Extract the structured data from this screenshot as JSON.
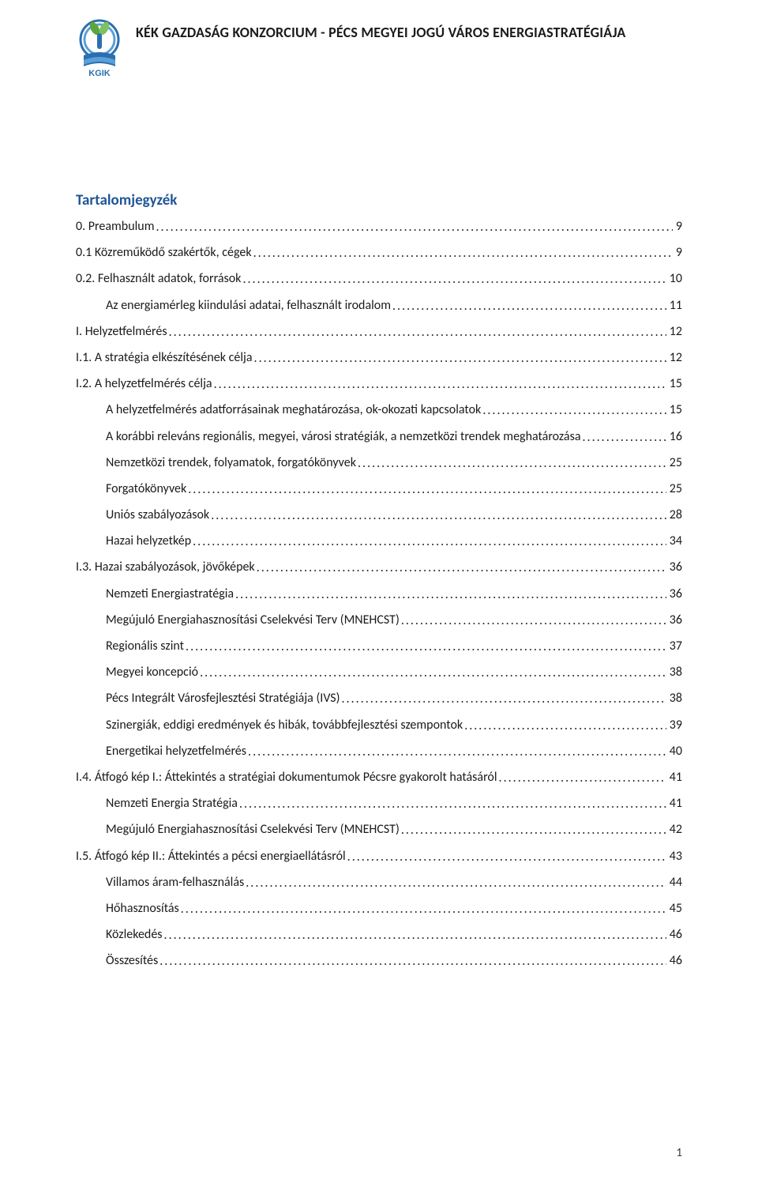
{
  "header": {
    "title": "KÉK GAZDASÁG KONZORCIUM  - PÉCS MEGYEI JOGÚ VÁROS ENERGIASTRATÉGIÁJA"
  },
  "logo": {
    "ring_outer_color": "#2b6fb0",
    "ring_inner_color": "#5aa0d8",
    "leaf_color": "#5aa63e",
    "base_primary": "#2b6fb0",
    "base_text": "KGIK",
    "background": "#ffffff"
  },
  "toc": {
    "title": "Tartalomjegyzék",
    "link_color": "#1f5596",
    "entries": [
      {
        "label": "0.    Preambulum",
        "page": "9",
        "indent": 0
      },
      {
        "label": "0.1 Közreműködő szakértők, cégek",
        "page": "9",
        "indent": 0
      },
      {
        "label": "0.2. Felhasznált adatok, források",
        "page": "10",
        "indent": 0
      },
      {
        "label": "Az energiamérleg kiindulási adatai, felhasznált irodalom",
        "page": "11",
        "indent": 1
      },
      {
        "label": "I.     Helyzetfelmérés",
        "page": "12",
        "indent": 0
      },
      {
        "label": "I.1.  A stratégia elkészítésének célja",
        "page": "12",
        "indent": 0
      },
      {
        "label": "I.2.  A helyzetfelmérés célja",
        "page": "15",
        "indent": 0
      },
      {
        "label": "A helyzetfelmérés adatforrásainak meghatározása, ok-okozati kapcsolatok",
        "page": "15",
        "indent": 1
      },
      {
        "label": "A korábbi releváns regionális, megyei, városi stratégiák, a nemzetközi trendek meghatározása",
        "page": "16",
        "indent": 1
      },
      {
        "label": "Nemzetközi trendek, folyamatok, forgatókönyvek",
        "page": "25",
        "indent": 1
      },
      {
        "label": "Forgatókönyvek",
        "page": "25",
        "indent": 1
      },
      {
        "label": "Uniós szabályozások",
        "page": "28",
        "indent": 1
      },
      {
        "label": "Hazai helyzetkép",
        "page": "34",
        "indent": 1
      },
      {
        "label": "I.3. Hazai szabályozások, jövőképek",
        "page": "36",
        "indent": 0
      },
      {
        "label": "Nemzeti Energiastratégia",
        "page": "36",
        "indent": 1
      },
      {
        "label": "Megújuló Energiahasznosítási Cselekvési Terv (MNEHCST)",
        "page": "36",
        "indent": 1
      },
      {
        "label": "Regionális szint",
        "page": "37",
        "indent": 1
      },
      {
        "label": "Megyei koncepció",
        "page": "38",
        "indent": 1
      },
      {
        "label": "Pécs Integrált Városfejlesztési Stratégiája (IVS)",
        "page": "38",
        "indent": 1
      },
      {
        "label": "Szinergiák, eddigi eredmények és hibák, továbbfejlesztési szempontok",
        "page": "39",
        "indent": 1
      },
      {
        "label": "Energetikai helyzetfelmérés",
        "page": "40",
        "indent": 1
      },
      {
        "label": "I.4. Átfogó kép I.: Áttekintés a stratégiai dokumentumok Pécsre gyakorolt hatásáról",
        "page": "41",
        "indent": 0
      },
      {
        "label": "Nemzeti Energia Stratégia",
        "page": "41",
        "indent": 1
      },
      {
        "label": "Megújuló Energiahasznosítási Cselekvési Terv (MNEHCST)",
        "page": "42",
        "indent": 1
      },
      {
        "label": "I.5. Átfogó kép II.: Áttekintés a pécsi energiaellátásról",
        "page": "43",
        "indent": 0
      },
      {
        "label": "Villamos áram-felhasználás",
        "page": "44",
        "indent": 1
      },
      {
        "label": "Hőhasznosítás",
        "page": "45",
        "indent": 1
      },
      {
        "label": "Közlekedés",
        "page": "46",
        "indent": 1
      },
      {
        "label": "Összesítés",
        "page": "46",
        "indent": 1
      }
    ]
  },
  "footer": {
    "page_number": "1"
  }
}
